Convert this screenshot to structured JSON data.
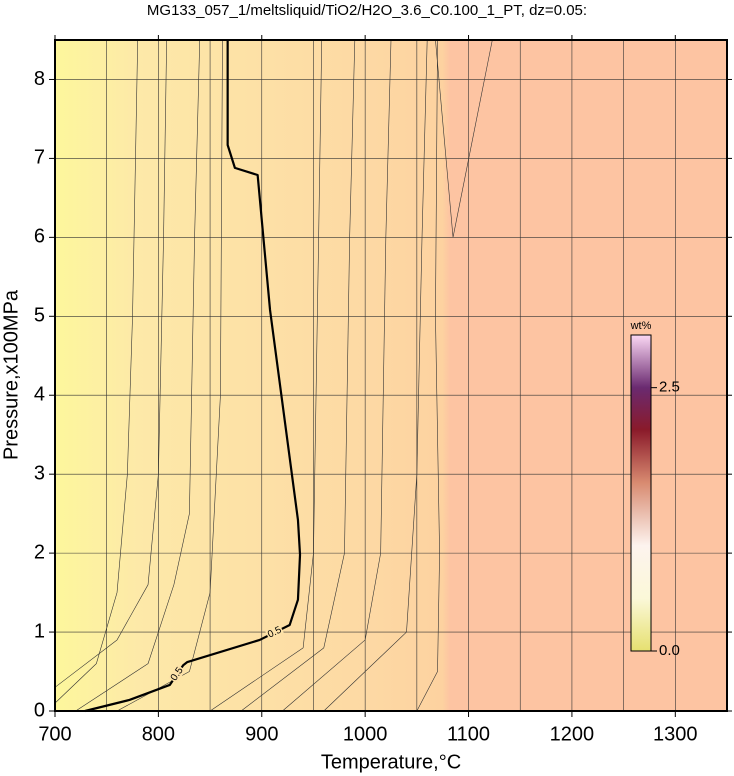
{
  "chart_data": {
    "type": "contour",
    "title": "MG133_057_1/meltsliquid/TiO2/H2O_3.6_C0.100_1_PT, dz=0.05:",
    "x_label": "Temperature,°C",
    "y_label": "Pressure,x100MPa",
    "xlim": [
      700,
      1350
    ],
    "ylim": [
      0,
      8.5
    ],
    "xticks": [
      700,
      800,
      900,
      1000,
      1100,
      1200,
      1300
    ],
    "x_minor_grid": [
      750,
      850,
      950,
      1050,
      1150,
      1250
    ],
    "yticks": [
      0,
      1,
      2,
      3,
      4,
      5,
      6,
      7,
      8
    ],
    "grid": true,
    "fill_stops": [
      {
        "x": 700,
        "color": "#fdf79c"
      },
      {
        "x": 780,
        "color": "#fde9a8"
      },
      {
        "x": 1000,
        "color": "#fdd9a4"
      },
      {
        "x": 1075,
        "color": "#fdd2a0"
      },
      {
        "x": 1082,
        "color": "#fdc4a2"
      }
    ],
    "main_contour": {
      "level": 0.5,
      "color": "#000000",
      "x": [
        729,
        772,
        811,
        824,
        828,
        898,
        927,
        935,
        937,
        935,
        908,
        896,
        874,
        867,
        867
      ],
      "y": [
        0,
        0.14,
        0.33,
        0.58,
        0.62,
        0.9,
        1.09,
        1.41,
        1.98,
        2.42,
        5.08,
        6.79,
        6.88,
        7.17,
        8.5
      ],
      "label_at": [
        5,
        2
      ]
    },
    "contours": [
      {
        "x": [
          700,
          740,
          760,
          770,
          775,
          780
        ],
        "y": [
          0.1,
          0.6,
          1.5,
          3,
          5,
          8.5
        ]
      },
      {
        "x": [
          700,
          760,
          790,
          800,
          805,
          808
        ],
        "y": [
          0.3,
          0.9,
          1.6,
          3,
          6,
          8.5
        ]
      },
      {
        "x": [
          720,
          790,
          815,
          830,
          835,
          840
        ],
        "y": [
          0,
          0.6,
          1.6,
          2.5,
          6,
          8.5
        ]
      },
      {
        "x": [
          760,
          830,
          850,
          860,
          862
        ],
        "y": [
          0,
          0.5,
          1.5,
          4,
          8.5
        ]
      },
      {
        "x": [
          850,
          940,
          950,
          955,
          958
        ],
        "y": [
          0,
          0.8,
          2,
          6,
          8.5
        ]
      },
      {
        "x": [
          880,
          960,
          980,
          985,
          990
        ],
        "y": [
          0,
          0.8,
          2,
          6,
          8.5
        ]
      },
      {
        "x": [
          920,
          1000,
          1015,
          1020,
          1025
        ],
        "y": [
          0,
          0.9,
          2,
          6,
          8.5
        ]
      },
      {
        "x": [
          960,
          1040,
          1050,
          1055,
          1060
        ],
        "y": [
          0,
          1,
          3,
          6,
          8.5
        ]
      },
      {
        "x": [
          1050,
          1070,
          1072,
          1068,
          1070
        ],
        "y": [
          0,
          0.5,
          2,
          5,
          8.5
        ]
      },
      {
        "x": [
          1068,
          1085,
          1123
        ],
        "y": [
          8.5,
          6.0,
          8.5
        ]
      }
    ],
    "colorbar": {
      "label": "wt%",
      "clim": [
        0,
        3
      ],
      "ticks": [
        {
          "value": 0,
          "label": "0.0"
        },
        {
          "value": 2.5,
          "label": "2.5"
        }
      ],
      "stops": [
        {
          "value": 0,
          "color": "#e6e070"
        },
        {
          "value": 0.5,
          "color": "#fbf8d8"
        },
        {
          "value": 1.0,
          "color": "#fdf3ee"
        },
        {
          "value": 1.6,
          "color": "#d88a70"
        },
        {
          "value": 2.1,
          "color": "#8a1a2a"
        },
        {
          "value": 2.5,
          "color": "#6a2a70"
        },
        {
          "value": 3,
          "color": "#fbd8f4"
        }
      ]
    }
  }
}
